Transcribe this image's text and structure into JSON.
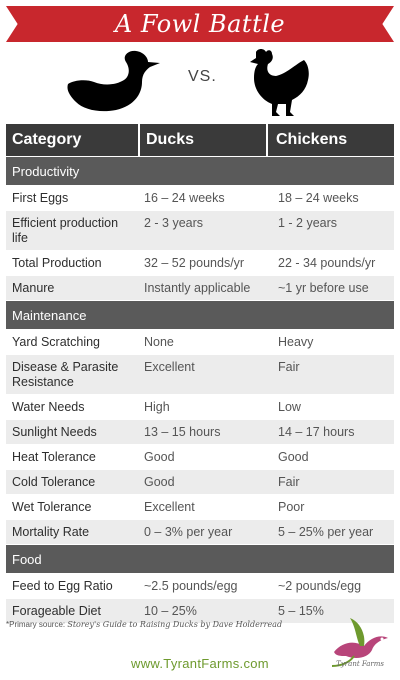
{
  "banner": {
    "title": "A Fowl Battle"
  },
  "hero": {
    "vs": "VS."
  },
  "header": {
    "category": "Category",
    "ducks": "Ducks",
    "chickens": "Chickens"
  },
  "sections": [
    {
      "title": "Productivity",
      "rows": [
        {
          "label": "First Eggs",
          "ducks": "16 – 24 weeks",
          "chickens": "18 – 24 weeks"
        },
        {
          "label": "Efficient production life",
          "ducks": "2 - 3 years",
          "chickens": "1 - 2 years"
        },
        {
          "label": "Total Production",
          "ducks": "32 – 52 pounds/yr",
          "chickens": "22 - 34 pounds/yr"
        },
        {
          "label": "Manure",
          "ducks": "Instantly applicable",
          "chickens": "~1 yr before use"
        }
      ]
    },
    {
      "title": "Maintenance",
      "rows": [
        {
          "label": "Yard Scratching",
          "ducks": "None",
          "chickens": "Heavy"
        },
        {
          "label": "Disease & Parasite Resistance",
          "ducks": "Excellent",
          "chickens": "Fair"
        },
        {
          "label": "Water Needs",
          "ducks": "High",
          "chickens": "Low"
        },
        {
          "label": "Sunlight Needs",
          "ducks": "13 – 15 hours",
          "chickens": "14 – 17 hours"
        },
        {
          "label": "Heat Tolerance",
          "ducks": "Good",
          "chickens": "Good"
        },
        {
          "label": "Cold Tolerance",
          "ducks": "Good",
          "chickens": "Fair"
        },
        {
          "label": "Wet Tolerance",
          "ducks": "Excellent",
          "chickens": "Poor"
        },
        {
          "label": "Mortality Rate",
          "ducks": "0 – 3% per year",
          "chickens": "5 – 25% per year"
        }
      ]
    },
    {
      "title": "Food",
      "rows": [
        {
          "label": "Feed to Egg Ratio",
          "ducks": "~2.5 pounds/egg",
          "chickens": "~2 pounds/egg"
        },
        {
          "label": "Forageable Diet",
          "ducks": "10 – 25%",
          "chickens": "5 – 15%"
        }
      ]
    }
  ],
  "footer": {
    "source_prefix": "*Primary source: ",
    "source_title": "Storey's Guide to Raising Ducks by Dave Holderread",
    "website": "www.TyrantFarms.com",
    "logo_text": "Tyrant Farms"
  },
  "colors": {
    "banner": "#c8272d",
    "header": "#3a3a3a",
    "section": "#5a5a5a",
    "alt_row": "#ececec",
    "website": "#6e9a2e"
  }
}
